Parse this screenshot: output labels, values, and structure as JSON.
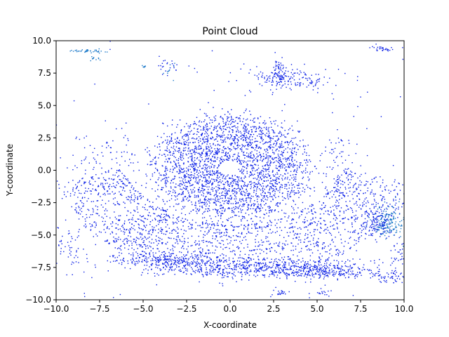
{
  "chart_data": {
    "type": "scatter",
    "title": "Point Cloud",
    "xlabel": "X-coordinate",
    "ylabel": "Y-coordinate",
    "xlim": [
      -10,
      10
    ],
    "ylim": [
      -10,
      10
    ],
    "xticks": [
      -10,
      -7.5,
      -5,
      -2.5,
      0,
      2.5,
      5,
      7.5,
      10
    ],
    "yticks": [
      -10,
      -7.5,
      -5,
      -2.5,
      0,
      2.5,
      5,
      7.5,
      10
    ],
    "xtick_labels": [
      "−10.0",
      "−7.5",
      "−5.0",
      "−2.5",
      "0.0",
      "2.5",
      "5.0",
      "7.5",
      "10.0"
    ],
    "ytick_labels": [
      "−10.0",
      "−7.5",
      "−5.0",
      "−2.5",
      "0.0",
      "2.5",
      "5.0",
      "7.5",
      "10.0"
    ],
    "grid": false,
    "colors": {
      "main": "#0a1fe6",
      "secondary": "#1a78c8"
    },
    "series": [
      {
        "color": "#0a1fe6",
        "clusters": [
          {
            "kind": "disk",
            "cx": 0.0,
            "cy": 0.2,
            "rx": 4.3,
            "ry": 4.0,
            "hole_rx": 0.6,
            "hole_ry": 0.5,
            "n": 2600
          },
          {
            "kind": "arc",
            "cx": 0.2,
            "cy": 2.5,
            "r_min": 7.0,
            "r_max": 11.0,
            "rings": 15,
            "a0": 200,
            "a1": 340,
            "ry_scale": 1.08,
            "n": 1700
          },
          {
            "kind": "blob",
            "cx": 2.0,
            "cy": -7.5,
            "sx": 3.5,
            "sy": 0.4,
            "n": 500
          },
          {
            "kind": "blob",
            "cx": -3.5,
            "cy": -7.0,
            "sx": 1.6,
            "sy": 0.35,
            "n": 240
          },
          {
            "kind": "blob",
            "cx": 5.5,
            "cy": -7.8,
            "sx": 1.2,
            "sy": 0.3,
            "n": 200
          },
          {
            "kind": "blob",
            "cx": 3.5,
            "cy": 7.0,
            "sx": 1.2,
            "sy": 0.45,
            "n": 160
          },
          {
            "kind": "blob",
            "cx": 2.8,
            "cy": 7.5,
            "sx": 0.25,
            "sy": 0.55,
            "n": 60
          },
          {
            "kind": "blob",
            "cx": 8.8,
            "cy": 9.4,
            "sx": 0.35,
            "sy": 0.1,
            "n": 30
          },
          {
            "kind": "blob",
            "cx": -5.0,
            "cy": -5.5,
            "sx": 0.9,
            "sy": 0.9,
            "n": 120
          },
          {
            "kind": "blob",
            "cx": -9.3,
            "cy": -6.0,
            "sx": 0.5,
            "sy": 0.8,
            "n": 60
          },
          {
            "kind": "blob",
            "cx": 9.2,
            "cy": -8.3,
            "sx": 0.6,
            "sy": 0.25,
            "n": 60
          },
          {
            "kind": "blob",
            "cx": 9.6,
            "cy": -6.5,
            "sx": 0.3,
            "sy": 0.6,
            "n": 30
          },
          {
            "kind": "blob",
            "cx": 6.3,
            "cy": 0.0,
            "sx": 0.5,
            "sy": 1.5,
            "n": 80
          },
          {
            "kind": "blob",
            "cx": -7.0,
            "cy": 0.5,
            "sx": 1.2,
            "sy": 1.5,
            "n": 110
          },
          {
            "kind": "blob",
            "cx": 3.0,
            "cy": -9.5,
            "sx": 0.35,
            "sy": 0.1,
            "n": 20
          },
          {
            "kind": "blob",
            "cx": 5.2,
            "cy": -9.5,
            "sx": 0.3,
            "sy": 0.1,
            "n": 15
          },
          {
            "kind": "blob",
            "cx": -3.5,
            "cy": 8.0,
            "sx": 0.35,
            "sy": 0.4,
            "n": 22
          },
          {
            "kind": "blob",
            "cx": 8.5,
            "cy": -4.0,
            "sx": 0.4,
            "sy": 0.6,
            "n": 120
          },
          {
            "kind": "uniform",
            "x0": -10,
            "x1": 10,
            "y0": -10,
            "y1": 10,
            "n": 120
          }
        ]
      },
      {
        "color": "#1a78c8",
        "clusters": [
          {
            "kind": "blob",
            "cx": 9.1,
            "cy": -4.0,
            "sx": 0.45,
            "sy": 0.6,
            "n": 150
          },
          {
            "kind": "blob",
            "cx": -8.1,
            "cy": 9.2,
            "sx": 0.5,
            "sy": 0.07,
            "n": 40
          },
          {
            "kind": "blob",
            "cx": -7.7,
            "cy": 8.6,
            "sx": 0.2,
            "sy": 0.08,
            "n": 10
          },
          {
            "kind": "blob",
            "cx": -5.0,
            "cy": 8.0,
            "sx": 0.15,
            "sy": 0.05,
            "n": 8
          },
          {
            "kind": "blob",
            "cx": -3.5,
            "cy": 7.6,
            "sx": 0.2,
            "sy": 0.3,
            "n": 10
          }
        ]
      }
    ]
  }
}
